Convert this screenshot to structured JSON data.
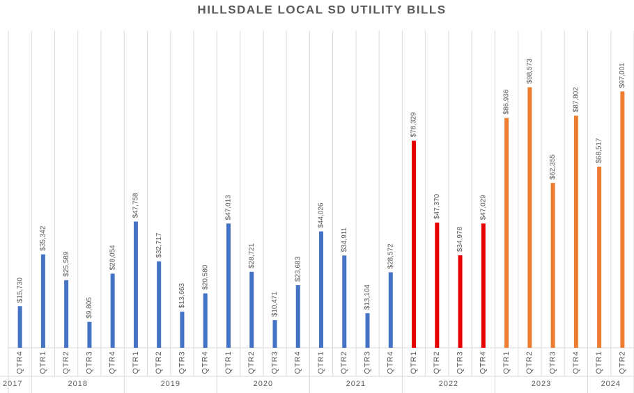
{
  "chart_data": {
    "type": "bar",
    "title": "HILLSDALE LOCAL SD UTILITY BILLS",
    "categories": [
      "QTR4",
      "QTR1",
      "QTR2",
      "QTR3",
      "QTR4",
      "QTR1",
      "QTR2",
      "QTR3",
      "QTR4",
      "QTR1",
      "QTR2",
      "QTR3",
      "QTR4",
      "QTR1",
      "QTR2",
      "QTR3",
      "QTR4",
      "QTR1",
      "QTR2",
      "QTR3",
      "QTR4",
      "QTR1",
      "QTR2",
      "QTR3",
      "QTR4",
      "QTR1",
      "QTR2"
    ],
    "years": [
      "2017",
      "2018",
      null,
      null,
      null,
      "2019",
      null,
      null,
      null,
      "2020",
      null,
      null,
      null,
      "2021",
      null,
      null,
      null,
      "2022",
      null,
      null,
      null,
      "2023",
      null,
      null,
      null,
      "2024",
      null
    ],
    "values": [
      15730,
      35342,
      25589,
      9805,
      28054,
      47758,
      32717,
      13663,
      20580,
      47013,
      28721,
      10471,
      23683,
      44026,
      34911,
      13104,
      28572,
      78329,
      47370,
      34978,
      47029,
      86936,
      98573,
      62355,
      87802,
      68517,
      97001
    ],
    "value_labels": [
      "$15,730",
      "$35,342",
      "$25,589",
      "$9,805",
      "$28,054",
      "$47,758",
      "$32,717",
      "$13,663",
      "$20,580",
      "$47,013",
      "$28,721",
      "$10,471",
      "$23,683",
      "$44,026",
      "$34,911",
      "$13,104",
      "$28,572",
      "$78,329",
      "$47,370",
      "$34,978",
      "$47,029",
      "$86,936",
      "$98,573",
      "$62,355",
      "$87,802",
      "$68,517",
      "$97,001"
    ],
    "colors": [
      "#4472c4",
      "#4472c4",
      "#4472c4",
      "#4472c4",
      "#4472c4",
      "#4472c4",
      "#4472c4",
      "#4472c4",
      "#4472c4",
      "#4472c4",
      "#4472c4",
      "#4472c4",
      "#4472c4",
      "#4472c4",
      "#4472c4",
      "#4472c4",
      "#4472c4",
      "#e60000",
      "#e60000",
      "#e60000",
      "#e60000",
      "#ed7d31",
      "#ed7d31",
      "#ed7d31",
      "#ed7d31",
      "#ed7d31",
      "#ed7d31"
    ],
    "ylim": [
      0,
      120000
    ],
    "grid": true
  }
}
